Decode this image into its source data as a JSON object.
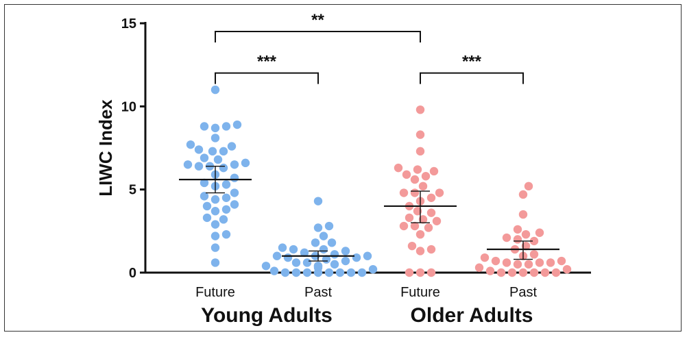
{
  "chart_data": {
    "type": "scatter",
    "ylabel": "LIWC Index",
    "ylim": [
      0,
      15
    ],
    "yticks": [
      "0",
      "5",
      "10",
      "15"
    ],
    "yticks_values": [
      0,
      5,
      10,
      15
    ],
    "groups": [
      "Young Adults",
      "Older Adults"
    ],
    "categories": [
      "Future",
      "Past",
      "Future",
      "Past"
    ],
    "series": [
      {
        "group": "Young Adults",
        "condition": "Future",
        "color": "#7EB3EC",
        "mean": 5.6,
        "ci": [
          4.8,
          6.4
        ],
        "values": [
          11.0,
          8.9,
          8.7,
          8.8,
          8.8,
          8.1,
          7.7,
          7.6,
          7.4,
          7.3,
          7.3,
          6.9,
          6.8,
          6.6,
          6.5,
          6.5,
          6.4,
          6.4,
          6.3,
          5.9,
          5.7,
          5.4,
          5.3,
          5.2,
          4.8,
          4.6,
          4.5,
          4.4,
          4.1,
          4.0,
          3.8,
          3.7,
          3.3,
          3.2,
          2.9,
          2.3,
          2.2,
          1.5,
          0.6
        ]
      },
      {
        "group": "Young Adults",
        "condition": "Past",
        "color": "#7EB3EC",
        "mean": 1.0,
        "ci": [
          0.7,
          1.3
        ],
        "values": [
          4.3,
          2.8,
          2.7,
          2.2,
          1.8,
          1.8,
          1.5,
          1.4,
          1.4,
          1.3,
          1.2,
          1.1,
          1.0,
          1.0,
          1.0,
          0.9,
          0.9,
          0.8,
          0.7,
          0.6,
          0.6,
          0.5,
          0.4,
          0.4,
          0.4,
          0.3,
          0.2,
          0.1,
          0.0,
          0.0,
          0.0,
          0.0,
          0.0,
          0.0,
          0.0,
          0.0
        ]
      },
      {
        "group": "Older Adults",
        "condition": "Future",
        "color": "#F39A9A",
        "mean": 4.0,
        "ci": [
          3.0,
          4.9
        ],
        "values": [
          9.8,
          8.3,
          7.3,
          6.3,
          6.2,
          6.1,
          5.9,
          5.8,
          5.6,
          5.2,
          4.8,
          4.8,
          4.8,
          4.5,
          4.3,
          4.0,
          3.7,
          3.6,
          3.3,
          3.2,
          3.1,
          2.8,
          2.8,
          2.7,
          2.3,
          1.6,
          1.4,
          1.3,
          0.0,
          0.0,
          0.0
        ]
      },
      {
        "group": "Older Adults",
        "condition": "Past",
        "color": "#F39A9A",
        "mean": 1.4,
        "ci": [
          0.8,
          1.9
        ],
        "values": [
          5.2,
          4.7,
          3.5,
          2.6,
          2.4,
          2.3,
          2.1,
          2.0,
          1.9,
          1.6,
          1.4,
          1.1,
          1.0,
          0.9,
          0.7,
          0.7,
          0.6,
          0.6,
          0.6,
          0.5,
          0.5,
          0.3,
          0.2,
          0.1,
          0.0,
          0.0,
          0.0,
          0.0,
          0.0,
          0.0
        ]
      }
    ],
    "significance": [
      {
        "from": 0,
        "to": 2,
        "label": "**",
        "y": 15.0
      },
      {
        "from": 0,
        "to": 1,
        "label": "***",
        "y": 12.5
      },
      {
        "from": 2,
        "to": 3,
        "label": "***",
        "y": 12.5
      }
    ],
    "grid": false,
    "legend": "none"
  }
}
